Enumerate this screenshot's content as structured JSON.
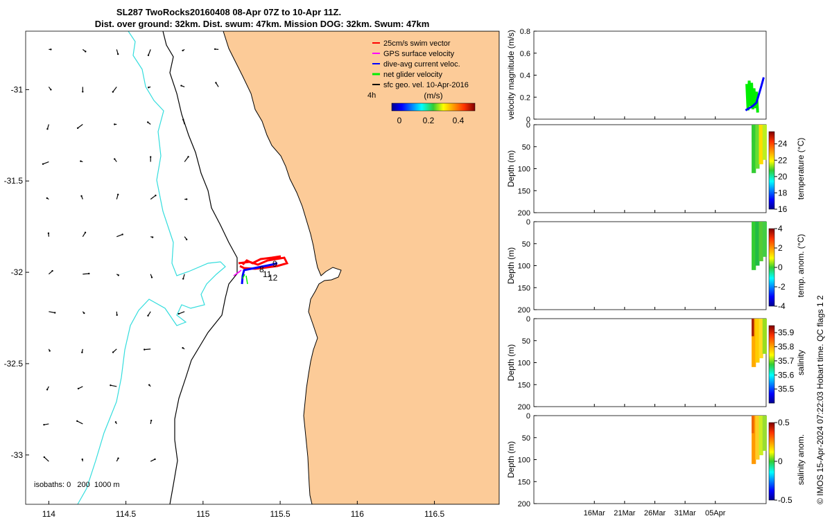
{
  "title": {
    "line1": "SL287 TwoRocks20160408 08-Apr 07Z to 10-Apr 11Z.",
    "line2": "Dist. over ground: 32km. Dist. swum: 47km. Mission DOG: 32km. Swum: 47km"
  },
  "colors": {
    "land": "#fccb98",
    "isobath_shallow": "#000000",
    "isobath_deep": "#33dddd",
    "swim": "#ff0000",
    "gps": "#ff00ff",
    "dive": "#0000ff",
    "net": "#00ee00"
  },
  "chart_data": [
    {
      "type": "map",
      "xlim": [
        113.85,
        116.92
      ],
      "ylim": [
        -33.27,
        -30.68
      ],
      "xticks": [
        114,
        114.5,
        115,
        115.5,
        116,
        116.5
      ],
      "xtick_labels": [
        "114",
        "114.5",
        "115",
        "115.5",
        "116",
        "116.5"
      ],
      "yticks": [
        -31,
        -31.5,
        -32,
        -32.5,
        -33
      ],
      "ytick_labels": [
        "-31",
        "-31.5",
        "-32",
        "-32.5",
        "-33"
      ],
      "legend": [
        {
          "label": "25cm/s swim vector",
          "color": "#ff0000"
        },
        {
          "label": "GPS surface velocity",
          "color": "#ff00ff"
        },
        {
          "label": "dive-avg current veloc.",
          "color": "#0000ff"
        },
        {
          "label": "net glider velocity",
          "color": "#00ee00"
        },
        {
          "label": "sfc geo. vel. 10-Apr-2016",
          "color": "#000000"
        }
      ],
      "legend_position": "top-right",
      "time_marker": "4h",
      "colorbar": {
        "label": "(m/s)",
        "range": [
          0,
          0.5
        ],
        "tick_labels": [
          "0",
          "0.2",
          "0.4"
        ]
      },
      "isobaths_label": "isobaths: 0   200  1000 m",
      "track_labels": [
        "9",
        "8",
        "11",
        "12"
      ],
      "track": [
        [
          115.25,
          -32.04
        ],
        [
          115.25,
          -31.97
        ],
        [
          115.3,
          -31.96
        ],
        [
          115.36,
          -31.95
        ],
        [
          115.42,
          -31.94
        ],
        [
          115.48,
          -31.93
        ],
        [
          115.53,
          -31.92
        ]
      ],
      "geo_vel_grid": {
        "lon_start": 114.0,
        "lon_step": 0.22,
        "lat_start": -30.78,
        "lat_step": -0.205,
        "cols": 11,
        "rows": 12
      }
    },
    {
      "type": "line",
      "ylabel": "velocity magnitude (m/s)",
      "ylim": [
        0,
        0.8
      ],
      "yticks": [
        0,
        0.2,
        0.4,
        0.6,
        0.8
      ],
      "ytick_labels": [
        "0",
        "0.2",
        "0.4",
        "0.6",
        "0.8"
      ],
      "series": [
        {
          "name": "net glider velocity",
          "color": "#00ee00",
          "t": [
            35.2,
            35.4,
            35.6,
            35.8,
            36.0,
            36.2,
            36.4,
            36.6,
            36.8,
            37.0
          ],
          "values": [
            0.32,
            0.08,
            0.35,
            0.12,
            0.33,
            0.09,
            0.28,
            0.1,
            0.25,
            0.06
          ]
        },
        {
          "name": "dive-avg current veloc.",
          "color": "#0000ff",
          "t": [
            35.0,
            35.6,
            36.2,
            36.8,
            37.6,
            38.0
          ],
          "values": [
            0.08,
            0.1,
            0.12,
            0.15,
            0.3,
            0.38
          ]
        }
      ]
    },
    {
      "type": "heatmap",
      "ylabel": "Depth (m)",
      "clabel": "temperature (°C)",
      "ylim": [
        0,
        200
      ],
      "clim": [
        16,
        25.5
      ],
      "cticks": [
        16,
        18,
        20,
        22,
        24
      ],
      "ctick_labels": [
        "16",
        "18",
        "20",
        "22",
        "24"
      ]
    },
    {
      "type": "heatmap",
      "ylabel": "Depth (m)",
      "clabel": "temp. anom. (°C)",
      "ylim": [
        0,
        200
      ],
      "clim": [
        -4,
        4
      ],
      "cticks": [
        -4,
        -2,
        0,
        2,
        4
      ],
      "ctick_labels": [
        "-4",
        "-2",
        "0",
        "2",
        "4"
      ]
    },
    {
      "type": "heatmap",
      "ylabel": "Depth (m)",
      "clabel": "salinity",
      "ylim": [
        0,
        200
      ],
      "clim": [
        35.4,
        35.95
      ],
      "cticks": [
        35.5,
        35.6,
        35.7,
        35.8,
        35.9
      ],
      "ctick_labels": [
        "35.5",
        "35.6",
        "35.7",
        "35.8",
        "35.9"
      ]
    },
    {
      "type": "heatmap",
      "ylabel": "Depth (m)",
      "clabel": "salinity anom.",
      "ylim": [
        0,
        200
      ],
      "clim": [
        -0.5,
        0.5
      ],
      "cticks": [
        -0.5,
        0,
        0.5
      ],
      "ctick_labels": [
        "-0.5",
        "0",
        "0.5"
      ]
    }
  ],
  "time_axis": {
    "tlim": [
      0,
      38.4
    ],
    "ticks": [
      10,
      15,
      20,
      25,
      30
    ],
    "tick_labels": [
      "16Mar",
      "21Mar",
      "26Mar",
      "31Mar",
      "05Apr"
    ]
  },
  "depth_ticks": [
    0,
    50,
    100,
    150,
    200
  ],
  "depth_tick_labels": [
    "0",
    "50",
    "100",
    "150",
    "200"
  ],
  "credit": "© IMOS 15-Apr-2024 07:22:03 Hobart time. QC flags 1  2"
}
